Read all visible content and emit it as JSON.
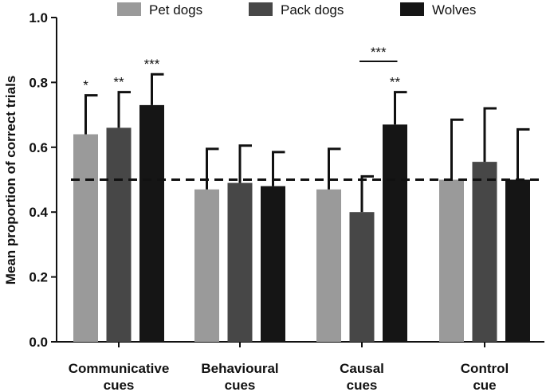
{
  "chart_data": {
    "type": "bar",
    "title": "",
    "xlabel": "",
    "ylabel": "Mean proportion of correct trials",
    "ylim": [
      0,
      1.0
    ],
    "yticks": [
      "0.0",
      "0.2",
      "0.4",
      "0.6",
      "0.8",
      "1.0"
    ],
    "categories": [
      [
        "Communicative",
        "cues"
      ],
      [
        "Behavioural",
        "cues"
      ],
      [
        "Causal",
        "cues"
      ],
      [
        "Control",
        "cue"
      ]
    ],
    "series": [
      {
        "name": "Pet dogs",
        "color": "#9a9a9a",
        "values": [
          0.64,
          0.47,
          0.47,
          0.5
        ],
        "errors": [
          0.12,
          0.125,
          0.125,
          0.185
        ],
        "sig": [
          "*",
          "",
          "",
          ""
        ]
      },
      {
        "name": "Pack dogs",
        "color": "#474747",
        "values": [
          0.66,
          0.49,
          0.4,
          0.555
        ],
        "errors": [
          0.11,
          0.115,
          0.11,
          0.165
        ],
        "sig": [
          "**",
          "",
          "",
          ""
        ]
      },
      {
        "name": "Wolves",
        "color": "#151515",
        "values": [
          0.73,
          0.48,
          0.67,
          0.5
        ],
        "errors": [
          0.095,
          0.105,
          0.1,
          0.155
        ],
        "sig": [
          "***",
          "",
          "**",
          ""
        ]
      }
    ],
    "reference_line": 0.5,
    "comparisons": [
      {
        "category": 2,
        "from_series": 1,
        "to_series": 2,
        "label": "***"
      }
    ],
    "legend_position": "top",
    "grid": false
  }
}
